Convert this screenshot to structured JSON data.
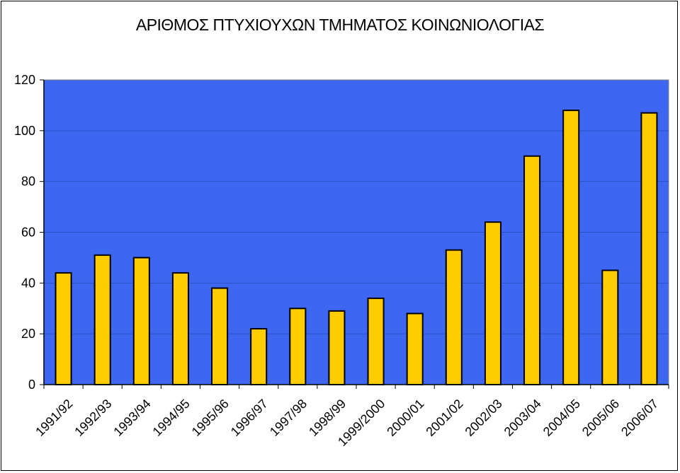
{
  "chart_data": {
    "type": "bar",
    "title": "ΑΡΙΘΜΟΣ ΠΤΥΧΙΟΥΧΩΝ ΤΜΗΜΑΤΟΣ ΚΟΙΝΩΝΙΟΛΟΓΙΑΣ",
    "xlabel": "",
    "ylabel": "",
    "categories": [
      "1991/92",
      "1992/93",
      "1993/94",
      "1994/95",
      "1995/96",
      "1996/97",
      "1997/98",
      "1998/99",
      "1999/2000",
      "2000/01",
      "2001/02",
      "2002/03",
      "2003/04",
      "2004/05",
      "2005/06",
      "2006/07"
    ],
    "values": [
      44,
      51,
      50,
      44,
      38,
      22,
      30,
      29,
      34,
      28,
      53,
      64,
      90,
      108,
      45,
      107
    ],
    "ylim": [
      0,
      120
    ],
    "yticks": [
      0,
      20,
      40,
      60,
      80,
      100,
      120
    ],
    "grid": true,
    "legend": "none",
    "colors": {
      "plot_background": "#3d67f0",
      "bar_fill": "#ffcc00",
      "bar_stroke": "#000000",
      "gridline": "#2a4fc8",
      "frame": "#000000"
    }
  }
}
